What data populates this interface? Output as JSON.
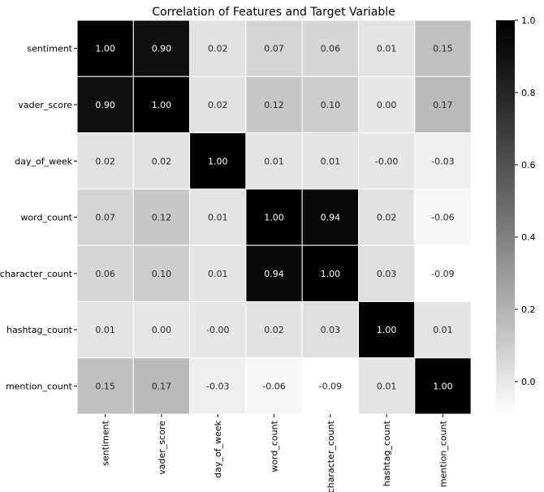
{
  "chart_data": {
    "type": "heatmap",
    "title": "Correlation of Features and Target Variable",
    "xlabel": "",
    "ylabel": "",
    "rows": [
      "sentiment",
      "vader_score",
      "day_of_week",
      "word_count",
      "character_count",
      "hashtag_count",
      "mention_count"
    ],
    "columns": [
      "sentiment",
      "vader_score",
      "day_of_week",
      "word_count",
      "character_count",
      "hashtag_count",
      "mention_count"
    ],
    "values": [
      [
        1.0,
        0.9,
        0.02,
        0.07,
        0.06,
        0.01,
        0.15
      ],
      [
        0.9,
        1.0,
        0.02,
        0.12,
        0.1,
        0.0,
        0.17
      ],
      [
        0.02,
        0.02,
        1.0,
        0.01,
        0.01,
        -0.0,
        -0.03
      ],
      [
        0.07,
        0.12,
        0.01,
        1.0,
        0.94,
        0.02,
        -0.06
      ],
      [
        0.06,
        0.1,
        0.01,
        0.94,
        1.0,
        0.03,
        -0.09
      ],
      [
        0.01,
        0.0,
        -0.0,
        0.02,
        0.03,
        1.0,
        0.01
      ],
      [
        0.15,
        0.17,
        -0.03,
        -0.06,
        -0.09,
        0.01,
        1.0
      ]
    ],
    "value_labels": [
      [
        "1.00",
        "0.90",
        "0.02",
        "0.07",
        "0.06",
        "0.01",
        "0.15"
      ],
      [
        "0.90",
        "1.00",
        "0.02",
        "0.12",
        "0.10",
        "0.00",
        "0.17"
      ],
      [
        "0.02",
        "0.02",
        "1.00",
        "0.01",
        "0.01",
        "-0.00",
        "-0.03"
      ],
      [
        "0.07",
        "0.12",
        "0.01",
        "1.00",
        "0.94",
        "0.02",
        "-0.06"
      ],
      [
        "0.06",
        "0.10",
        "0.01",
        "0.94",
        "1.00",
        "0.03",
        "-0.09"
      ],
      [
        "0.01",
        "0.00",
        "-0.00",
        "0.02",
        "0.03",
        "1.00",
        "0.01"
      ],
      [
        "0.15",
        "0.17",
        "-0.03",
        "-0.06",
        "-0.09",
        "0.01",
        "1.00"
      ]
    ],
    "colormap": "Greys",
    "color_low": "#ffffff",
    "color_high": "#000000",
    "vmin": -0.09,
    "vmax": 1.0,
    "colorbar_ticks": [
      0.0,
      0.2,
      0.4,
      0.6,
      0.8,
      1.0
    ],
    "colorbar_tick_labels": [
      "0.0",
      "0.2",
      "0.4",
      "0.6",
      "0.8",
      "1.0"
    ],
    "grid_lines_color": "#ffffff",
    "legend": "right-colorbar"
  }
}
